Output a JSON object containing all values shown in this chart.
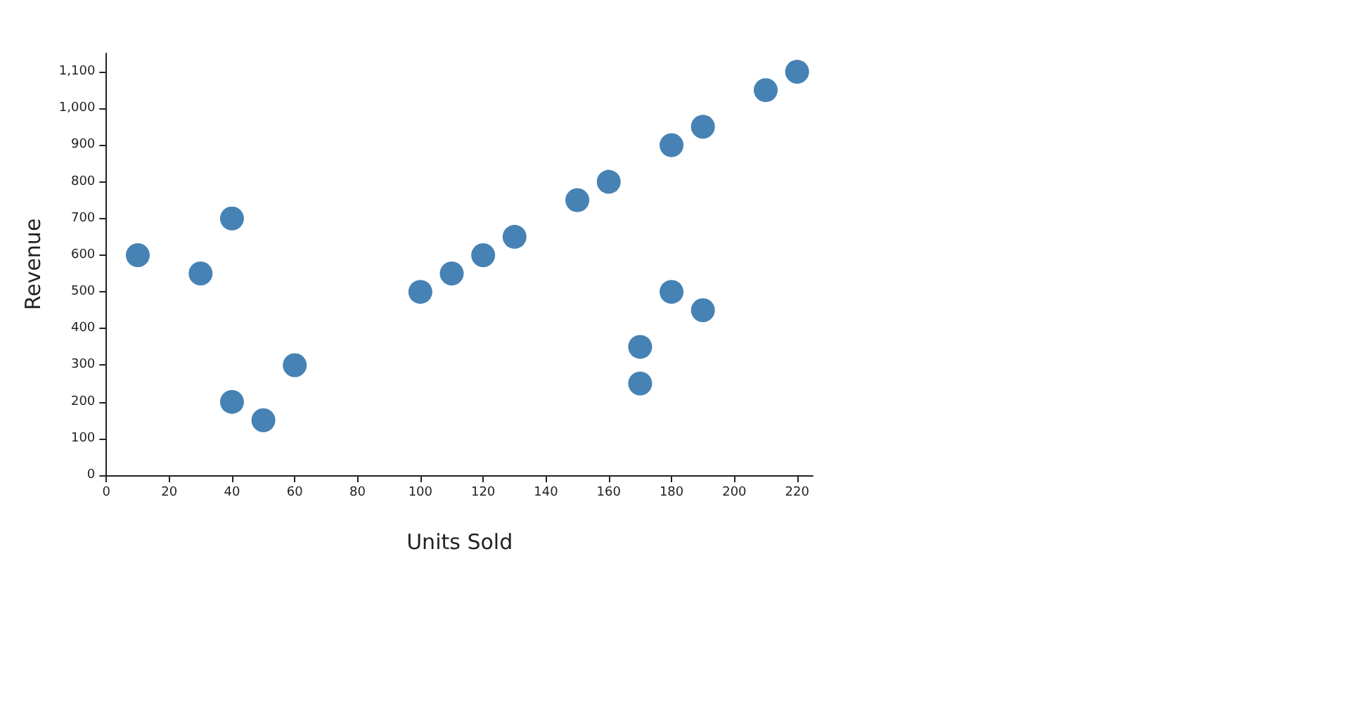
{
  "chart_data": {
    "type": "scatter",
    "xlabel": "Units Sold",
    "ylabel": "Revenue",
    "x": [
      10,
      30,
      40,
      40,
      50,
      60,
      100,
      110,
      120,
      130,
      150,
      160,
      170,
      170,
      180,
      180,
      190,
      190,
      210,
      220
    ],
    "values": [
      600,
      550,
      700,
      200,
      150,
      300,
      500,
      550,
      600,
      650,
      750,
      800,
      350,
      250,
      900,
      500,
      950,
      450,
      1050,
      1100
    ],
    "color": "#4682b4",
    "marker": "circle",
    "grid": false,
    "xlim": [
      0,
      225
    ],
    "xticks": [
      0,
      20,
      40,
      60,
      80,
      100,
      120,
      140,
      160,
      180,
      200,
      220
    ],
    "ylim": [
      0,
      1150
    ],
    "yticks": [
      0,
      100,
      200,
      300,
      400,
      500,
      600,
      700,
      800,
      900,
      {
        "value": 1000,
        "label": "1,000"
      },
      {
        "value": 1100,
        "label": "1,100"
      }
    ]
  }
}
